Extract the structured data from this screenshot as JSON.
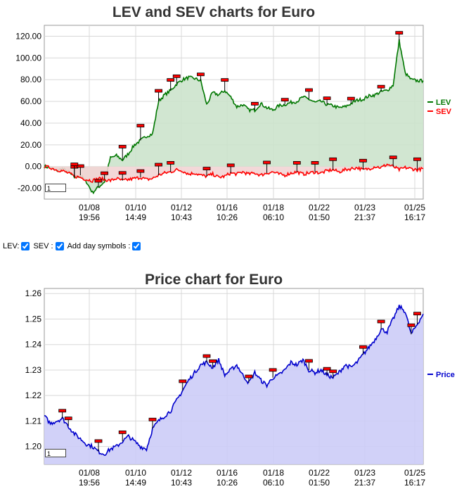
{
  "chart_data": [
    {
      "type": "area",
      "title": "LEV and SEV charts for Euro",
      "xlabel": "",
      "ylabel": "",
      "ylim": [
        -30,
        130
      ],
      "y_ticks": [
        "120.00",
        "100.00",
        "80.00",
        "60.00",
        "40.00",
        "20.00",
        "0.00",
        "-20.00"
      ],
      "x_ticks": [
        {
          "date": "01/08",
          "time": "19:56"
        },
        {
          "date": "01/10",
          "time": "14:49"
        },
        {
          "date": "01/12",
          "time": "10:43"
        },
        {
          "date": "01/16",
          "time": "10:26"
        },
        {
          "date": "01/18",
          "time": "06:10"
        },
        {
          "date": "01/22",
          "time": "01:50"
        },
        {
          "date": "01/23",
          "time": "21:37"
        },
        {
          "date": "01/25",
          "time": "16:17"
        }
      ],
      "legend_position": "right",
      "range_box_value": "1",
      "series": [
        {
          "name": "LEV",
          "color": "#007700",
          "values": [
            0,
            -1,
            -4,
            -2,
            -5,
            -10,
            -8,
            -14,
            -24,
            -19,
            -14,
            8,
            10,
            6,
            12,
            20,
            24,
            28,
            30,
            60,
            66,
            70,
            76,
            80,
            82,
            81,
            79,
            57,
            68,
            66,
            70,
            64,
            55,
            57,
            52,
            52,
            58,
            54,
            52,
            56,
            57,
            59,
            60,
            64,
            62,
            59,
            60,
            57,
            56,
            54,
            55,
            58,
            61,
            62,
            65,
            66,
            69,
            70,
            75,
            116,
            86,
            80,
            79,
            79
          ]
        },
        {
          "name": "SEV",
          "color": "#ff0000",
          "values": [
            0,
            -1,
            -3,
            -4,
            -6,
            -9,
            -10,
            -12,
            -13,
            -11,
            -12,
            -13,
            -11,
            -13,
            -12,
            -11,
            -10,
            -12,
            -11,
            -8,
            -6,
            -5,
            -3,
            -4,
            -7,
            -6,
            -8,
            -9,
            -7,
            -10,
            -9,
            -6,
            -7,
            -5,
            -7,
            -6,
            -8,
            -6,
            -5,
            -7,
            -8,
            -6,
            -5,
            -7,
            -6,
            -5,
            -6,
            -4,
            -3,
            -5,
            -3,
            -2,
            -1,
            -3,
            -2,
            0,
            -1,
            2,
            0,
            -3,
            -1,
            -2,
            -3,
            -2
          ]
        }
      ]
    },
    {
      "type": "area",
      "title": "Price chart for Euro",
      "xlabel": "",
      "ylabel": "",
      "ylim": [
        1.193,
        1.262
      ],
      "y_ticks": [
        "1.26",
        "1.25",
        "1.24",
        "1.23",
        "1.22",
        "1.21",
        "1.20"
      ],
      "x_ticks": [
        {
          "date": "01/08",
          "time": "19:56"
        },
        {
          "date": "01/10",
          "time": "14:49"
        },
        {
          "date": "01/12",
          "time": "10:43"
        },
        {
          "date": "01/16",
          "time": "10:26"
        },
        {
          "date": "01/18",
          "time": "06:10"
        },
        {
          "date": "01/22",
          "time": "01:50"
        },
        {
          "date": "01/23",
          "time": "21:37"
        },
        {
          "date": "01/25",
          "time": "16:17"
        }
      ],
      "legend_position": "right",
      "range_box_value": "1",
      "series": [
        {
          "name": "Price",
          "color": "#0000cc",
          "values": [
            1.212,
            1.209,
            1.21,
            1.211,
            1.208,
            1.205,
            1.203,
            1.201,
            1.2,
            1.198,
            1.197,
            1.199,
            1.2,
            1.202,
            1.204,
            1.202,
            1.2,
            1.199,
            1.207,
            1.21,
            1.212,
            1.214,
            1.218,
            1.222,
            1.226,
            1.229,
            1.232,
            1.233,
            1.231,
            1.234,
            1.228,
            1.23,
            1.232,
            1.228,
            1.225,
            1.229,
            1.226,
            1.224,
            1.227,
            1.228,
            1.23,
            1.233,
            1.232,
            1.234,
            1.23,
            1.229,
            1.23,
            1.228,
            1.227,
            1.229,
            1.232,
            1.231,
            1.233,
            1.236,
            1.239,
            1.242,
            1.246,
            1.245,
            1.25,
            1.255,
            1.253,
            1.244,
            1.248,
            1.252
          ]
        }
      ]
    }
  ],
  "controls": {
    "lev_label": "LEV:",
    "sev_label": "SEV :",
    "day_label": "Add day symbols :",
    "lev_checked": true,
    "sev_checked": true,
    "day_checked": true
  },
  "colors": {
    "lev_fill": "#cce3cc",
    "sev_fill": "#f2d4d4",
    "price_fill": "#ccccf7",
    "marker": "#ff0000",
    "grid": "#d8d8d8"
  }
}
